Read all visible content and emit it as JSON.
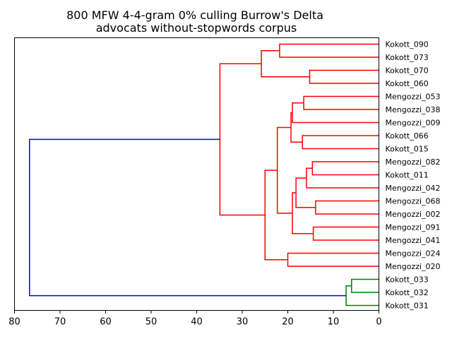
{
  "chart_data": {
    "type": "dendrogram",
    "title_lines": [
      "800 MFW 4-4-gram 0% culling Burrow's Delta",
      "advocats without-stopwords corpus"
    ],
    "orientation": "left",
    "xlim": [
      80,
      0
    ],
    "xticks": [
      80,
      70,
      60,
      50,
      40,
      30,
      20,
      10,
      0
    ],
    "leaves": [
      "Kokott_090",
      "Kokott_073",
      "Kokott_070",
      "Kokott_060",
      "Mengozzi_053",
      "Mengozzi_038",
      "Mengozzi_009",
      "Kokott_066",
      "Kokott_015",
      "Mengozzi_082",
      "Kokott_011",
      "Mengozzi_042",
      "Mengozzi_068",
      "Mengozzi_002",
      "Mengozzi_091",
      "Mengozzi_041",
      "Mengozzi_024",
      "Mengozzi_020",
      "Kokott_033",
      "Kokott_032",
      "Kokott_031"
    ],
    "colors": {
      "red": "#ff0000",
      "green": "#008000",
      "blue": "#0000ff"
    },
    "merges": [
      {
        "id": "A",
        "left": "Kokott_090",
        "right": "Kokott_073",
        "height": 21.8,
        "color": "red"
      },
      {
        "id": "B",
        "left": "Kokott_070",
        "right": "Kokott_060",
        "height": 15.2,
        "color": "red"
      },
      {
        "id": "C",
        "left": "A",
        "right": "B",
        "height": 25.8,
        "color": "red"
      },
      {
        "id": "D",
        "left": "Mengozzi_053",
        "right": "Mengozzi_038",
        "height": 16.5,
        "color": "red"
      },
      {
        "id": "E",
        "left": "D",
        "right": "Mengozzi_009",
        "height": 19.0,
        "color": "red"
      },
      {
        "id": "F",
        "left": "Kokott_066",
        "right": "Kokott_015",
        "height": 16.8,
        "color": "red"
      },
      {
        "id": "G",
        "left": "E",
        "right": "F",
        "height": 19.3,
        "color": "red"
      },
      {
        "id": "H",
        "left": "Mengozzi_082",
        "right": "Kokott_011",
        "height": 14.6,
        "color": "red"
      },
      {
        "id": "I",
        "left": "H",
        "right": "Mengozzi_042",
        "height": 15.9,
        "color": "red"
      },
      {
        "id": "J",
        "left": "Mengozzi_068",
        "right": "Mengozzi_002",
        "height": 13.9,
        "color": "red"
      },
      {
        "id": "K",
        "left": "I",
        "right": "J",
        "height": 18.2,
        "color": "red"
      },
      {
        "id": "L",
        "left": "Mengozzi_091",
        "right": "Mengozzi_041",
        "height": 14.4,
        "color": "red"
      },
      {
        "id": "M",
        "left": "K",
        "right": "L",
        "height": 19.0,
        "color": "red"
      },
      {
        "id": "N",
        "left": "G",
        "right": "M",
        "height": 22.3,
        "color": "red"
      },
      {
        "id": "O",
        "left": "Mengozzi_024",
        "right": "Mengozzi_020",
        "height": 20.0,
        "color": "red"
      },
      {
        "id": "P",
        "left": "N",
        "right": "O",
        "height": 25.0,
        "color": "red"
      },
      {
        "id": "Q",
        "left": "C",
        "right": "P",
        "height": 34.9,
        "color": "red"
      },
      {
        "id": "R",
        "left": "Kokott_033",
        "right": "Kokott_032",
        "height": 6.0,
        "color": "green"
      },
      {
        "id": "S",
        "left": "R",
        "right": "Kokott_031",
        "height": 7.2,
        "color": "green"
      },
      {
        "id": "T",
        "left": "Q",
        "right": "S",
        "height": 76.7,
        "color": "blue"
      }
    ]
  }
}
